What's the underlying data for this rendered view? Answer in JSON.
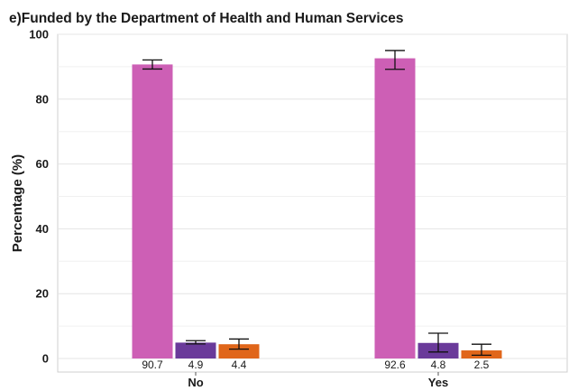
{
  "chart_data": {
    "type": "bar",
    "title": "e)Funded by the Department of Health and Human Services",
    "xlabel": "",
    "ylabel": "Percentage (%)",
    "ylim": [
      0,
      100
    ],
    "yticks": [
      0,
      20,
      40,
      60,
      80,
      100
    ],
    "grid": true,
    "categories": [
      "No",
      "Yes"
    ],
    "series": [
      {
        "color": "#cd5fb5",
        "values": [
          90.7,
          92.6
        ],
        "error_low": [
          89.3,
          89.2
        ],
        "error_high": [
          92.1,
          95.0
        ]
      },
      {
        "color": "#6a3a9a",
        "values": [
          4.9,
          4.8
        ],
        "error_low": [
          4.5,
          2.0
        ],
        "error_high": [
          5.5,
          7.8
        ]
      },
      {
        "color": "#e0661a",
        "values": [
          4.4,
          2.5
        ],
        "error_low": [
          2.9,
          1.0
        ],
        "error_high": [
          6.0,
          4.4
        ]
      }
    ],
    "data_labels": [
      [
        "90.7",
        "92.6"
      ],
      [
        "4.9",
        "4.8"
      ],
      [
        "4.4",
        "2.5"
      ]
    ]
  }
}
